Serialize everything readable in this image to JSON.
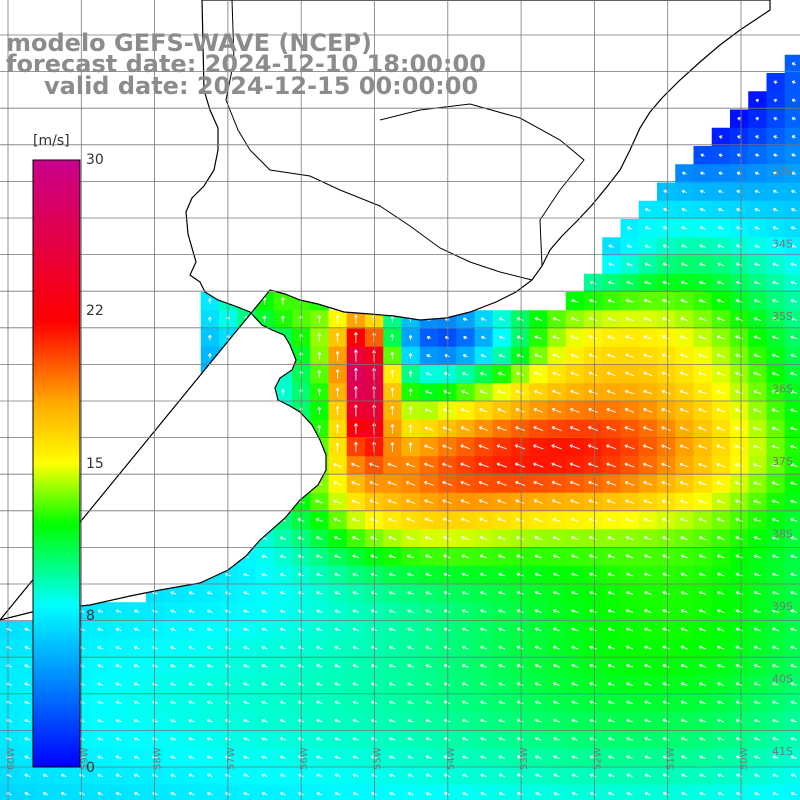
{
  "header": {
    "model": "modelo GEFS-WAVE (NCEP)",
    "forecast": "forecast date: 2024-12-10 18:00:00",
    "valid": "valid date: 2024-12-15 00:00:00"
  },
  "colorbar": {
    "unit": "[m/s]",
    "ticks": [
      "30",
      "22",
      "15",
      "8",
      "0"
    ],
    "tick_values": [
      30,
      22,
      15,
      8,
      0
    ],
    "min": 0,
    "max": 30,
    "stops": [
      {
        "value": 0,
        "color": "#0000ff"
      },
      {
        "value": 8,
        "color": "#00ffff"
      },
      {
        "value": 12,
        "color": "#00ff00"
      },
      {
        "value": 15,
        "color": "#ffff00"
      },
      {
        "value": 18,
        "color": "#ffaa00"
      },
      {
        "value": 22,
        "color": "#ff0000"
      },
      {
        "value": 30,
        "color": "#c8008c"
      }
    ]
  },
  "map": {
    "lat_labels": [
      "33S",
      "34S",
      "35S",
      "36S",
      "37S",
      "38S",
      "39S",
      "40S",
      "41S"
    ],
    "lon_labels": [
      "60W",
      "59W",
      "58W",
      "57W",
      "56W",
      "55W",
      "54W",
      "53W",
      "52W",
      "51W",
      "50W"
    ],
    "land_color": "#ffffff",
    "coast_color": "#000000",
    "grid_color": "#777777",
    "arrow_color": "#ffffff"
  }
}
